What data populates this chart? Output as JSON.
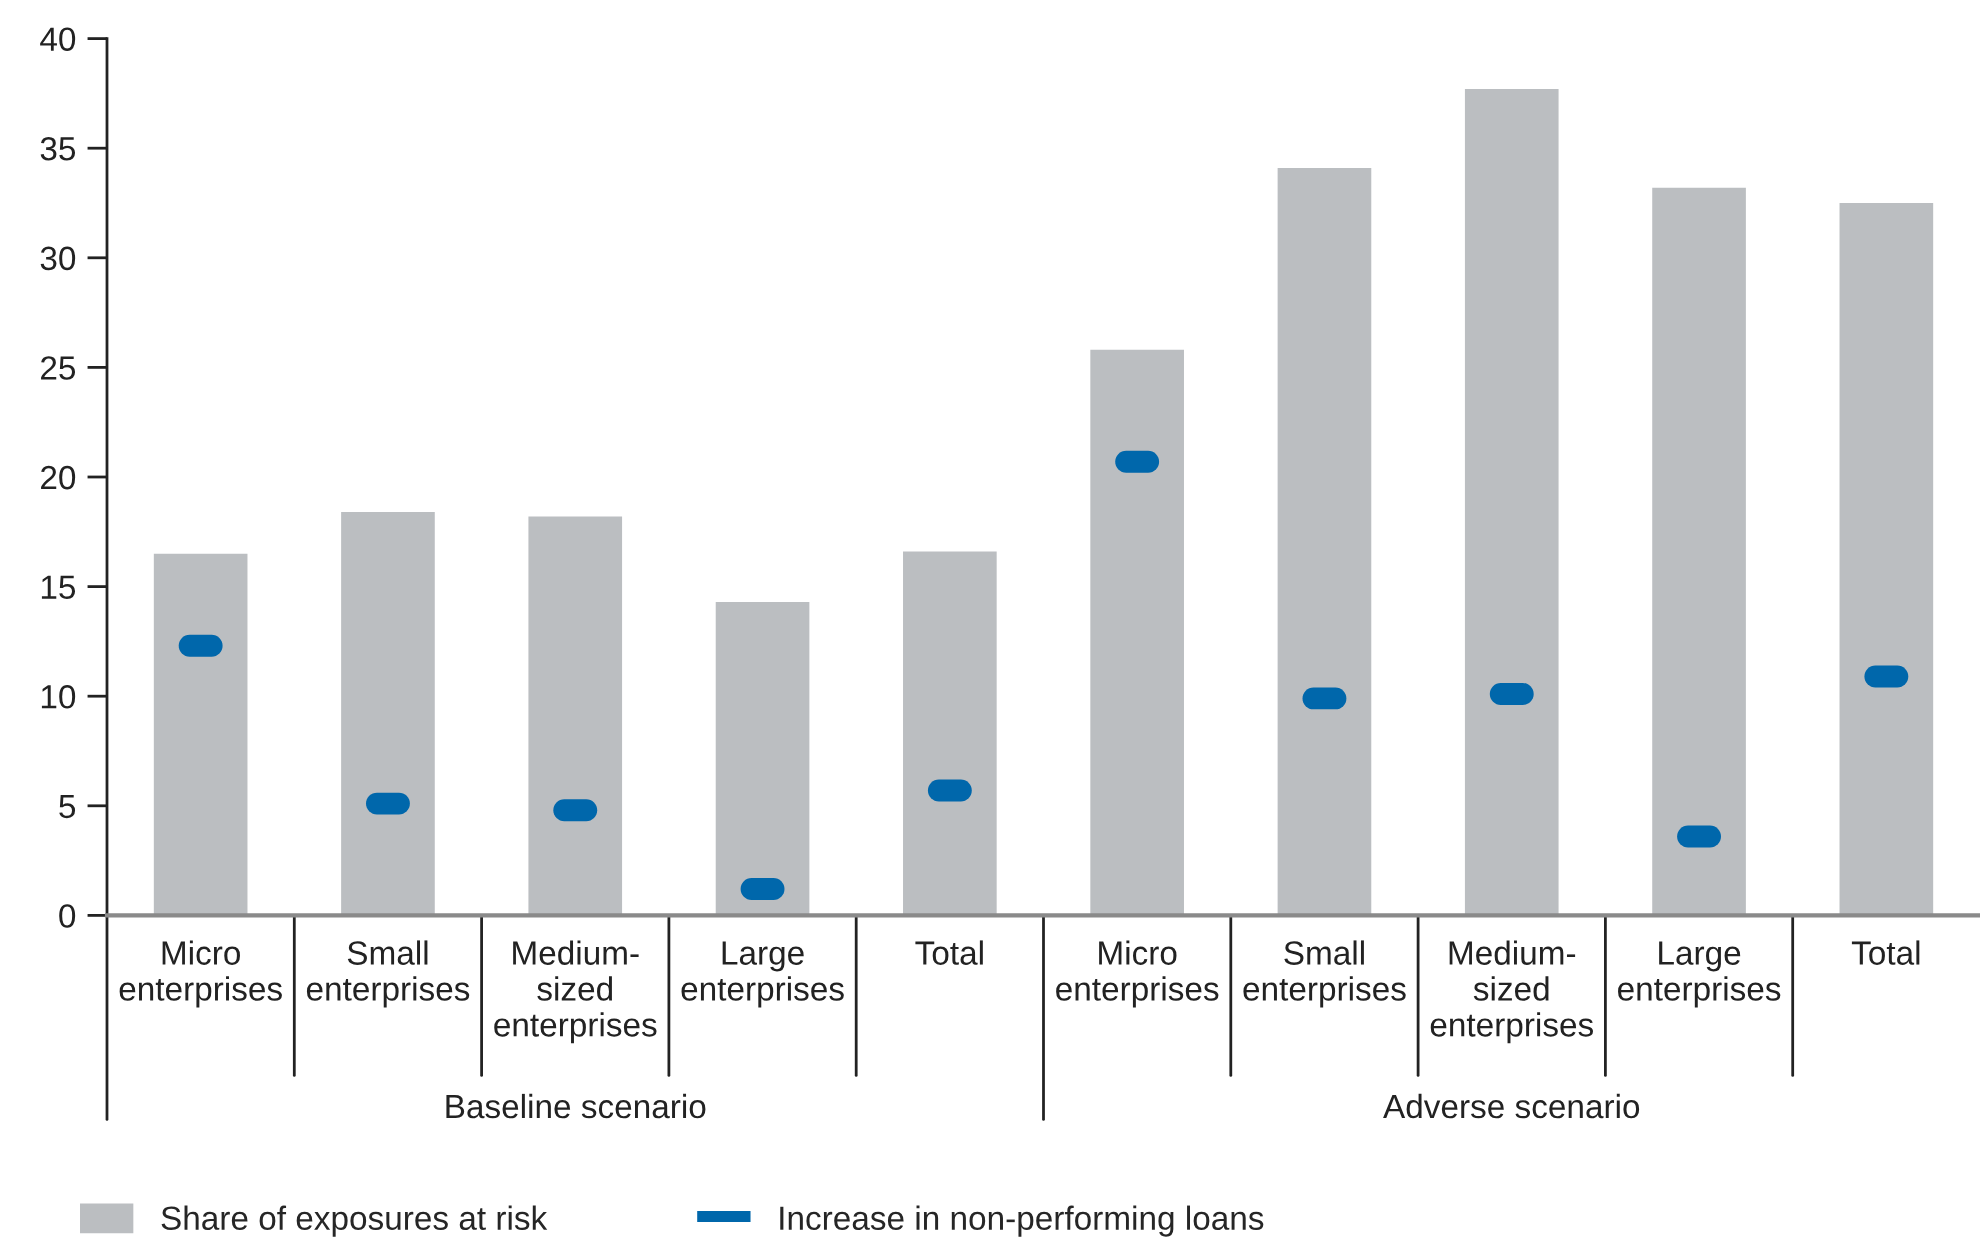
{
  "chart_data": {
    "type": "bar",
    "categories": [
      "Micro\nenterprises",
      "Small\nenterprises",
      "Medium-\nsized\nenterprises",
      "Large\nenterprises",
      "Total",
      "Micro\nenterprises",
      "Small\nenterprises",
      "Medium-\nsized\nenterprises",
      "Large\nenterprises",
      "Total"
    ],
    "series": [
      {
        "name": "Share of exposures at risk",
        "color": "#bbbec1",
        "values": [
          16.5,
          18.4,
          18.2,
          14.3,
          16.6,
          25.8,
          34.1,
          37.7,
          33.2,
          32.5
        ]
      },
      {
        "name": "Increase in non-performing loans",
        "type": "scatter",
        "color": "#0067ab",
        "values": [
          12.3,
          5.1,
          4.8,
          1.2,
          5.7,
          20.7,
          9.9,
          10.1,
          3.6,
          10.9
        ]
      }
    ],
    "ylim": [
      0,
      40
    ],
    "yticks": [
      0,
      5,
      10,
      15,
      20,
      25,
      30,
      35,
      40
    ],
    "legend": "bottom",
    "annotations": [
      "Baseline scenario",
      "Adverse scenario"
    ]
  }
}
